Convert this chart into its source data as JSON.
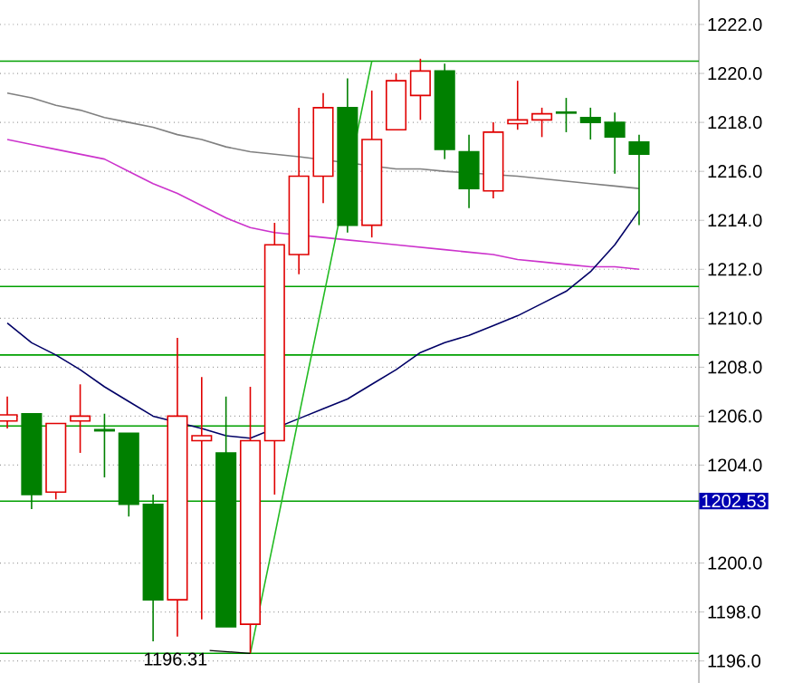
{
  "chart_data": {
    "type": "candlestick",
    "categories": [
      null,
      null,
      null,
      null,
      null,
      null,
      null,
      null,
      null,
      null,
      null,
      null,
      null,
      null,
      null,
      null,
      null,
      null,
      null,
      null,
      null,
      null,
      null,
      null,
      null,
      null,
      null
    ],
    "ohlc": [
      [
        1205.8,
        1206.8,
        1205.5,
        1206.05
      ],
      [
        1206.1,
        1206.1,
        1202.2,
        1202.8
      ],
      [
        1202.9,
        1205.7,
        1202.6,
        1205.7
      ],
      [
        1205.8,
        1207.3,
        1204.5,
        1206.0
      ],
      [
        1205.45,
        1206.1,
        1203.5,
        1205.4
      ],
      [
        1205.3,
        1205.3,
        1201.9,
        1202.4
      ],
      [
        1202.4,
        1202.8,
        1196.8,
        1198.5
      ],
      [
        1198.5,
        1209.2,
        1197.0,
        1206.0
      ],
      [
        1205.0,
        1207.6,
        1197.7,
        1205.2
      ],
      [
        1204.5,
        1206.8,
        1197.4,
        1197.4
      ],
      [
        1197.5,
        1207.2,
        1196.31,
        1205.0
      ],
      [
        1205.0,
        1213.9,
        1202.8,
        1213.0
      ],
      [
        1212.6,
        1218.6,
        1211.8,
        1215.8
      ],
      [
        1215.8,
        1219.2,
        1214.7,
        1218.6
      ],
      [
        1218.6,
        1219.8,
        1213.5,
        1213.8
      ],
      [
        1213.8,
        1219.3,
        1213.3,
        1217.3
      ],
      [
        1217.7,
        1220.0,
        1217.7,
        1219.7
      ],
      [
        1219.1,
        1220.6,
        1218.1,
        1220.1
      ],
      [
        1220.1,
        1220.4,
        1216.5,
        1216.9
      ],
      [
        1216.8,
        1217.5,
        1214.5,
        1215.3
      ],
      [
        1215.2,
        1218.0,
        1214.9,
        1217.6
      ],
      [
        1217.95,
        1219.7,
        1217.7,
        1218.1
      ],
      [
        1218.1,
        1218.6,
        1217.4,
        1218.35
      ],
      [
        1218.42,
        1219.0,
        1217.6,
        1218.38
      ],
      [
        1218.2,
        1218.6,
        1217.3,
        1218.0
      ],
      [
        1218.0,
        1218.4,
        1215.9,
        1217.4
      ],
      [
        1217.2,
        1217.5,
        1213.8,
        1216.7
      ]
    ],
    "colors": [
      "#e00000",
      "#008000",
      "#e00000",
      "#e00000",
      "#008000",
      "#008000",
      "#008000",
      "#e00000",
      "#e00000",
      "#008000",
      "#e00000",
      "#e00000",
      "#e00000",
      "#e00000",
      "#008000",
      "#e00000",
      "#e00000",
      "#e00000",
      "#008000",
      "#008000",
      "#e00000",
      "#e00000",
      "#e00000",
      "#008000",
      "#008000",
      "#008000",
      "#008000"
    ],
    "series": [
      {
        "type": "line",
        "color": "#808080",
        "values": [
          1219.2,
          1219.0,
          1218.7,
          1218.5,
          1218.2,
          1218.0,
          1217.8,
          1217.5,
          1217.3,
          1217.0,
          1216.8,
          1216.7,
          1216.6,
          null,
          null,
          null,
          1216.1,
          1216.1,
          1216.0,
          null,
          null,
          1215.8,
          1215.7,
          1215.6,
          1215.5,
          1215.4,
          1215.3
        ]
      },
      {
        "type": "line",
        "color": "#cc33cc",
        "values": [
          1217.3,
          1217.1,
          1216.9,
          1216.7,
          1216.5,
          1216.0,
          1215.5,
          1215.1,
          1214.6,
          1214.1,
          1213.7,
          1213.5,
          null,
          1213.3,
          1213.2,
          1213.1,
          1213.0,
          1212.9,
          1212.8,
          1212.7,
          1212.6,
          1212.4,
          1212.3,
          1212.2,
          1212.1,
          1212.1,
          1212.0
        ]
      },
      {
        "type": "line",
        "color": "#000066",
        "values": [
          1209.8,
          1209.0,
          1208.5,
          1207.9,
          1207.2,
          1206.6,
          1206.0,
          null,
          1205.5,
          1205.2,
          1205.1,
          null,
          1205.9,
          1206.3,
          1206.7,
          1207.3,
          1207.9,
          1208.6,
          1209.0,
          1209.3,
          1209.7,
          1210.1,
          1210.6,
          1211.1,
          1211.9,
          1213.0,
          1214.4
        ]
      },
      {
        "type": "line",
        "color": "#22bb22",
        "values": [
          null,
          null,
          null,
          null,
          null,
          null,
          null,
          null,
          null,
          null,
          1196.3,
          1201.1,
          1206.0,
          1210.8,
          null,
          1220.5,
          null,
          null,
          null,
          null,
          null,
          null,
          null,
          null,
          null,
          null,
          null
        ]
      }
    ],
    "ylim": [
      1195.1,
      1223.0
    ],
    "yticks": [
      {
        "value": 1222,
        "label": "1222.0"
      },
      {
        "value": 1220,
        "label": "1220.0"
      },
      {
        "value": 1218,
        "label": "1218.0"
      },
      {
        "value": 1216,
        "label": "1216.0"
      },
      {
        "value": 1214,
        "label": "1214.0"
      },
      {
        "value": 1212,
        "label": "1212.0"
      },
      {
        "value": 1210,
        "label": "1210.0"
      },
      {
        "value": 1208,
        "label": "1208.0"
      },
      {
        "value": 1206,
        "label": "1206.0"
      },
      {
        "value": 1204,
        "label": "1204.0"
      },
      {
        "value": 1200,
        "label": "1200.0"
      },
      {
        "value": 1198,
        "label": "1198.0"
      },
      {
        "value": 1196,
        "label": "1196.0"
      }
    ],
    "grid": "y",
    "ref_lines": [
      {
        "axis": "y",
        "value": 1220.5,
        "color": "#00a000"
      },
      {
        "axis": "y",
        "value": 1211.3,
        "color": "#00a000"
      },
      {
        "axis": "y",
        "value": 1208.5,
        "color": "#00a000"
      },
      {
        "axis": "y",
        "value": 1205.6,
        "color": "#00a000"
      },
      {
        "axis": "y",
        "value": 1202.53,
        "label": "1202.53",
        "color": "#00a000"
      },
      {
        "axis": "y",
        "value": 1196.31,
        "color": "#00a000"
      }
    ],
    "annotations": [
      "1196.31"
    ]
  }
}
